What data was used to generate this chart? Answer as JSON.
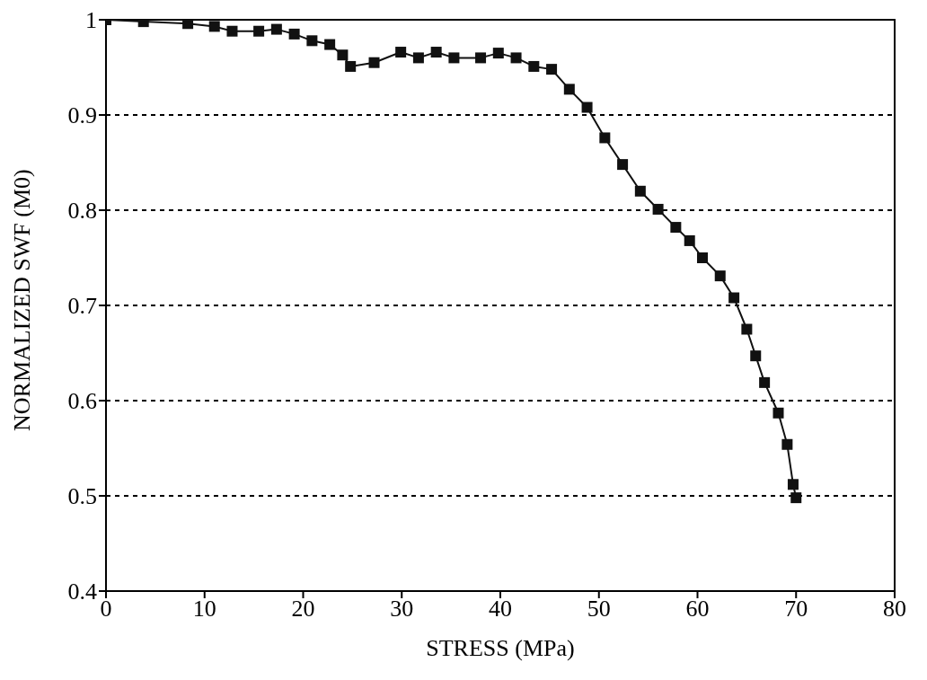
{
  "chart_data": {
    "type": "line",
    "xlabel": "STRESS (MPa)",
    "ylabel": "NORMALIZED SWF (M0)",
    "x": [
      0,
      3.8,
      8.3,
      11,
      12.8,
      15.5,
      17.3,
      19.1,
      20.9,
      22.7,
      24,
      24.8,
      27.2,
      29.9,
      31.7,
      33.5,
      35.3,
      38,
      39.8,
      41.6,
      43.4,
      45.2,
      47,
      48.8,
      50.6,
      52.4,
      54.2,
      56,
      57.8,
      59.2,
      60.5,
      62.3,
      63.7,
      65,
      65.9,
      66.8,
      68.2,
      69.1,
      69.7,
      70
    ],
    "series": [
      {
        "color": "#111111",
        "values": [
          1.0,
          0.998,
          0.996,
          0.993,
          0.988,
          0.988,
          0.99,
          0.985,
          0.978,
          0.974,
          0.963,
          0.951,
          0.955,
          0.966,
          0.96,
          0.966,
          0.96,
          0.96,
          0.965,
          0.96,
          0.951,
          0.948,
          0.927,
          0.908,
          0.876,
          0.848,
          0.82,
          0.801,
          0.782,
          0.768,
          0.75,
          0.731,
          0.708,
          0.675,
          0.647,
          0.619,
          0.587,
          0.554,
          0.512,
          0.498
        ]
      }
    ],
    "xlim": [
      0,
      80
    ],
    "xticks": [
      0,
      10,
      20,
      30,
      40,
      50,
      60,
      70,
      80
    ],
    "ylim": [
      0.4,
      1
    ],
    "yticks": [
      0.4,
      0.5,
      0.6,
      0.7,
      0.8,
      0.9,
      1
    ],
    "grid": "y",
    "marker": "square",
    "line_style": "solid"
  }
}
